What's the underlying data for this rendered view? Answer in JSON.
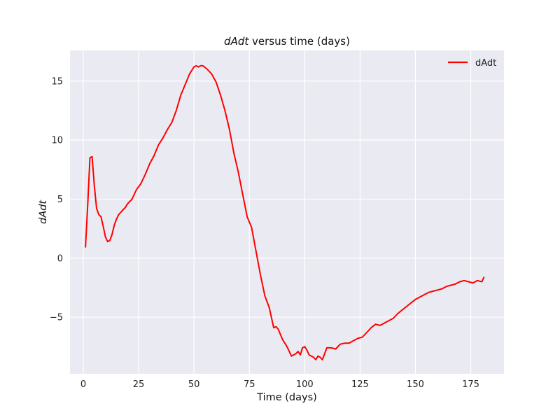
{
  "chart_data": {
    "type": "line",
    "title_italic": "dAdt",
    "title_rest": " versus time (days)",
    "xlabel": "Time (days)",
    "ylabel": "dAdt",
    "xlim": [
      -6,
      190
    ],
    "ylim": [
      -9.8,
      17.6
    ],
    "xticks": [
      0,
      25,
      50,
      75,
      100,
      125,
      150,
      175
    ],
    "yticks": [
      -5,
      0,
      5,
      10,
      15
    ],
    "grid": true,
    "background": "#EAEAF2",
    "grid_color": "#FFFFFF",
    "legend_position": "top-right",
    "series": [
      {
        "name": "dAdt",
        "color": "#FF0000",
        "x": [
          1,
          2,
          3,
          4,
          5,
          6,
          7,
          8,
          9,
          10,
          11,
          12,
          13,
          14,
          15,
          16,
          17,
          18,
          19,
          20,
          22,
          24,
          26,
          28,
          30,
          32,
          34,
          36,
          38,
          40,
          42,
          44,
          46,
          48,
          50,
          51,
          52,
          53,
          54,
          56,
          58,
          60,
          62,
          64,
          66,
          68,
          70,
          72,
          74,
          76,
          78,
          80,
          82,
          84,
          86,
          87,
          88,
          90,
          92,
          94,
          96,
          97,
          98,
          99,
          100,
          101,
          102,
          103,
          104,
          105,
          106,
          107,
          108,
          110,
          112,
          114,
          116,
          118,
          120,
          122,
          124,
          126,
          128,
          130,
          132,
          134,
          136,
          138,
          140,
          142,
          144,
          146,
          148,
          150,
          152,
          154,
          156,
          158,
          160,
          162,
          164,
          166,
          168,
          170,
          172,
          174,
          176,
          178,
          180,
          181
        ],
        "y": [
          0.9,
          4.5,
          8.5,
          8.6,
          6.1,
          4.2,
          3.7,
          3.5,
          2.7,
          1.8,
          1.4,
          1.5,
          2.0,
          2.8,
          3.3,
          3.7,
          3.9,
          4.1,
          4.3,
          4.6,
          5.0,
          5.8,
          6.3,
          7.1,
          8.0,
          8.7,
          9.6,
          10.2,
          10.9,
          11.5,
          12.5,
          13.8,
          14.7,
          15.6,
          16.2,
          16.3,
          16.2,
          16.3,
          16.3,
          16.0,
          15.6,
          14.9,
          13.8,
          12.5,
          10.9,
          8.9,
          7.3,
          5.4,
          3.5,
          2.6,
          0.6,
          -1.4,
          -3.2,
          -4.2,
          -5.9,
          -5.8,
          -6.0,
          -6.9,
          -7.5,
          -8.3,
          -8.1,
          -7.9,
          -8.2,
          -7.6,
          -7.5,
          -7.8,
          -8.2,
          -8.3,
          -8.4,
          -8.6,
          -8.3,
          -8.4,
          -8.6,
          -7.6,
          -7.6,
          -7.7,
          -7.3,
          -7.2,
          -7.2,
          -7.0,
          -6.8,
          -6.7,
          -6.3,
          -5.9,
          -5.6,
          -5.7,
          -5.5,
          -5.3,
          -5.1,
          -4.7,
          -4.4,
          -4.1,
          -3.8,
          -3.5,
          -3.3,
          -3.1,
          -2.9,
          -2.8,
          -2.7,
          -2.6,
          -2.4,
          -2.3,
          -2.2,
          -2.0,
          -1.9,
          -2.0,
          -2.1,
          -1.9,
          -2.0,
          -1.6
        ]
      }
    ]
  }
}
